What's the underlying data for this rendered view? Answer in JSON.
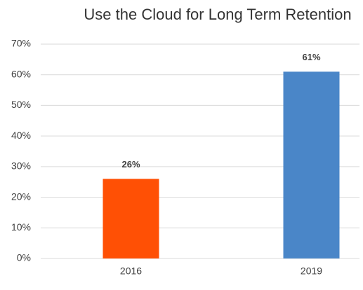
{
  "chart_data": {
    "type": "bar",
    "title": "Use the Cloud for Long Term Retention",
    "categories": [
      "2016",
      "2019"
    ],
    "values": [
      26,
      61
    ],
    "value_labels": [
      "26%",
      "61%"
    ],
    "colors": [
      "#ff5005",
      "#4a86c8"
    ],
    "ylim": [
      0,
      70
    ],
    "yticks": [
      {
        "value": 0,
        "label": "0%"
      },
      {
        "value": 10,
        "label": "10%"
      },
      {
        "value": 20,
        "label": "20%"
      },
      {
        "value": 30,
        "label": "30%"
      },
      {
        "value": 40,
        "label": "40%"
      },
      {
        "value": 50,
        "label": "50%"
      },
      {
        "value": 60,
        "label": "60%"
      },
      {
        "value": 70,
        "label": "70%"
      }
    ],
    "grid": true
  }
}
